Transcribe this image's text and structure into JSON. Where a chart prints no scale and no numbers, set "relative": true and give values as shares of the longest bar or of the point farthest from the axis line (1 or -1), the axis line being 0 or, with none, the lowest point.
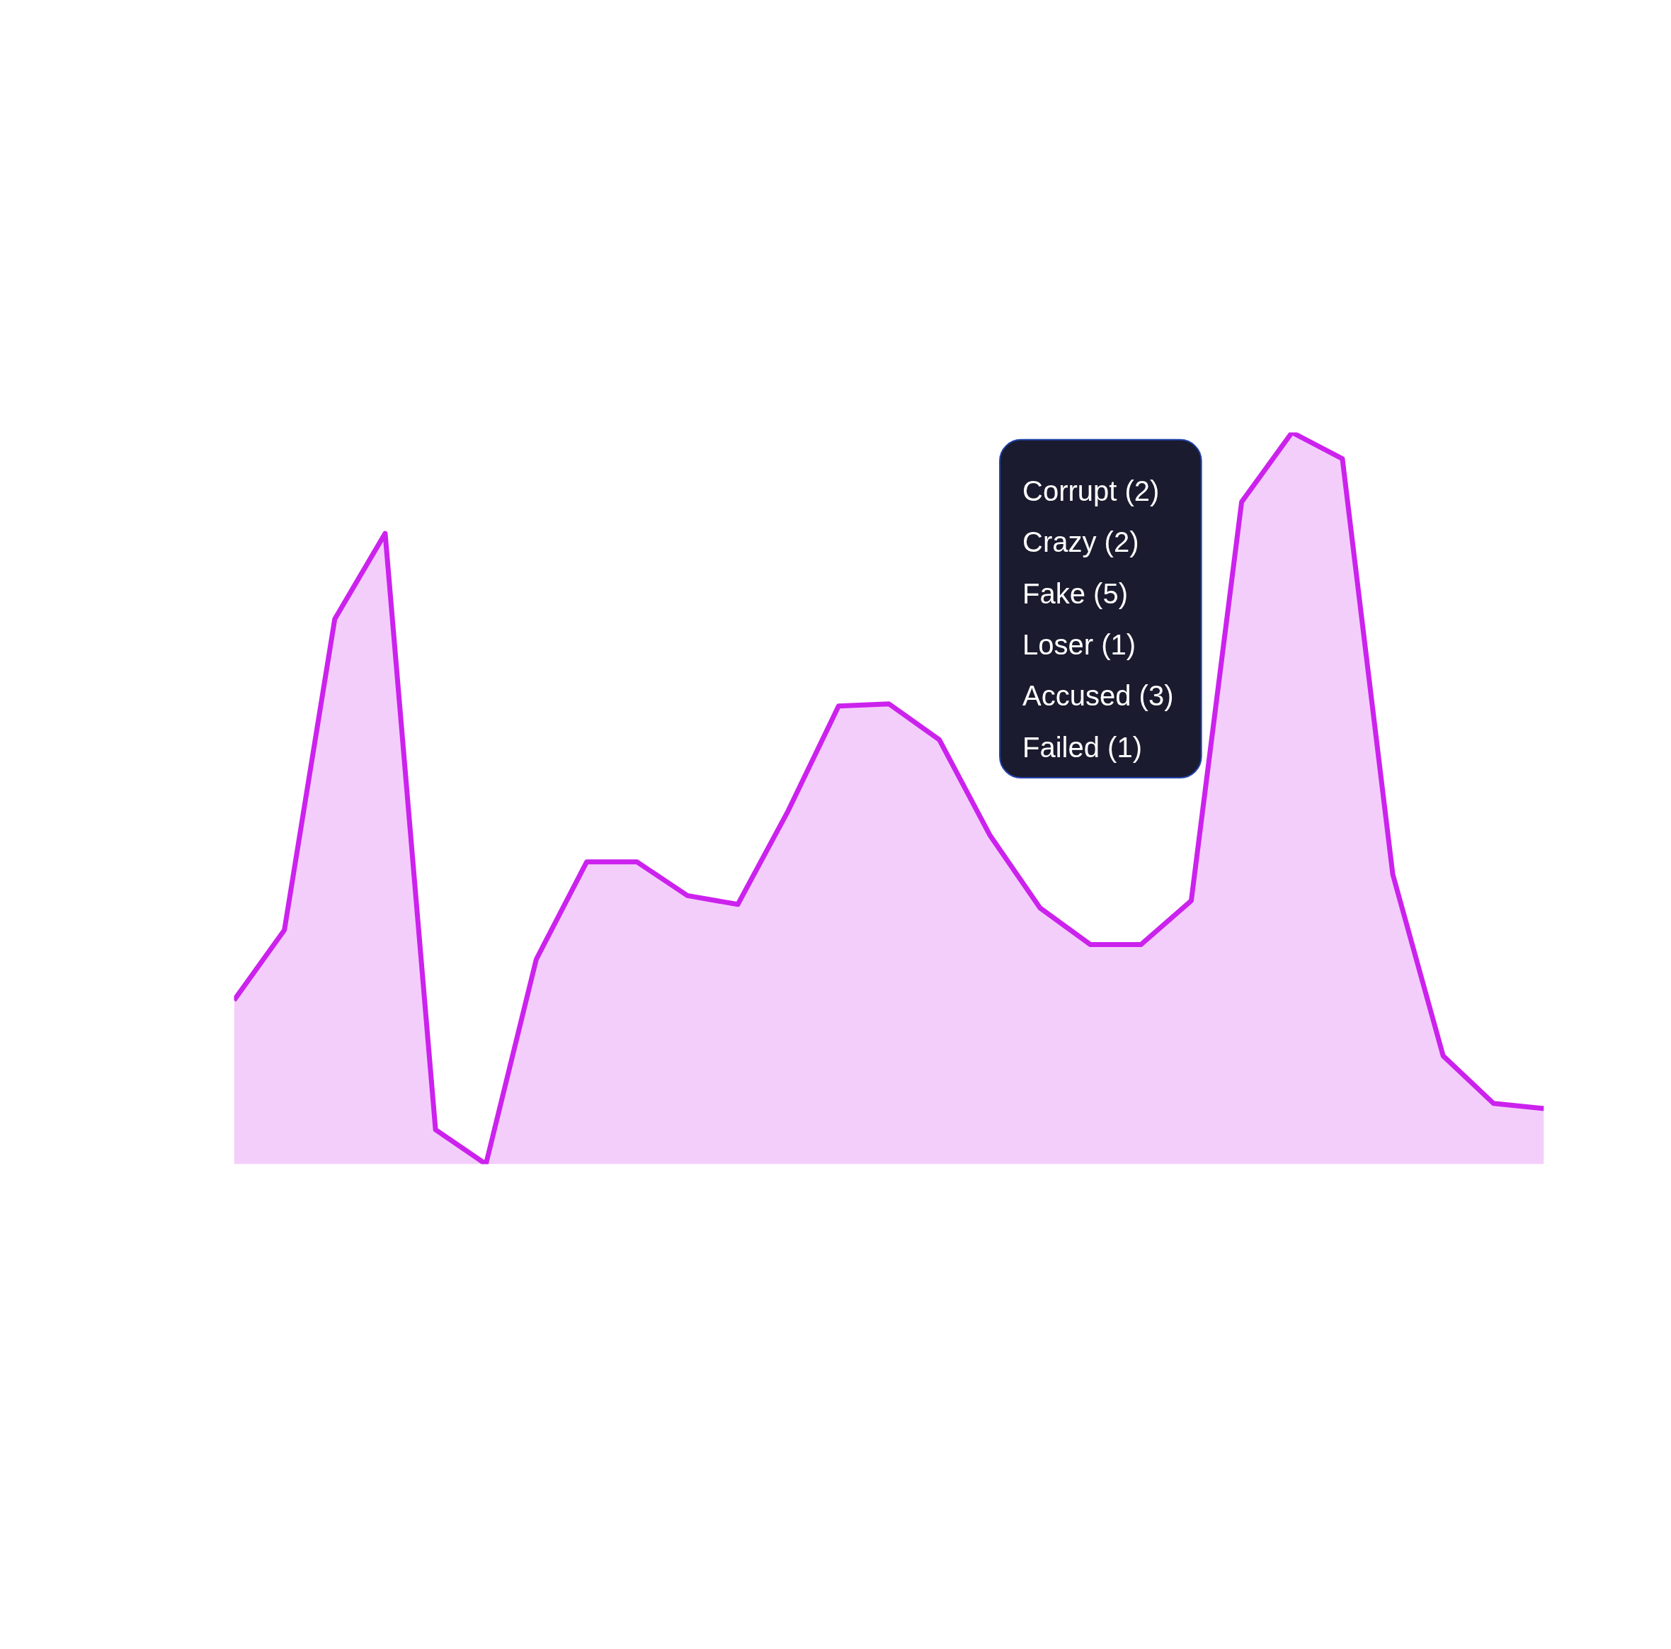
{
  "chart_data": {
    "type": "area",
    "relative": true,
    "color": "#cc22ee",
    "categories": [
      null,
      null,
      null,
      null,
      null,
      null,
      null,
      null,
      null,
      null,
      null,
      null,
      null,
      null,
      null,
      null,
      null,
      null,
      null,
      null,
      null,
      null,
      null,
      null,
      null,
      null,
      null
    ],
    "values": [
      0.224,
      0.32,
      0.745,
      0.862,
      0.047,
      0,
      0.28,
      0.413,
      0.413,
      0.367,
      0.355,
      0.483,
      0.626,
      0.629,
      0.58,
      0.45,
      0.35,
      0.3,
      0.3,
      0.36,
      0.905,
      1,
      0.964,
      0.396,
      0.148,
      0.083,
      0.076
    ],
    "annotations": [
      "Corrupt (2)",
      "Crazy (2)",
      "Fake (5)",
      "Loser (1)",
      "Accused (3)",
      "Failed (1)"
    ]
  }
}
